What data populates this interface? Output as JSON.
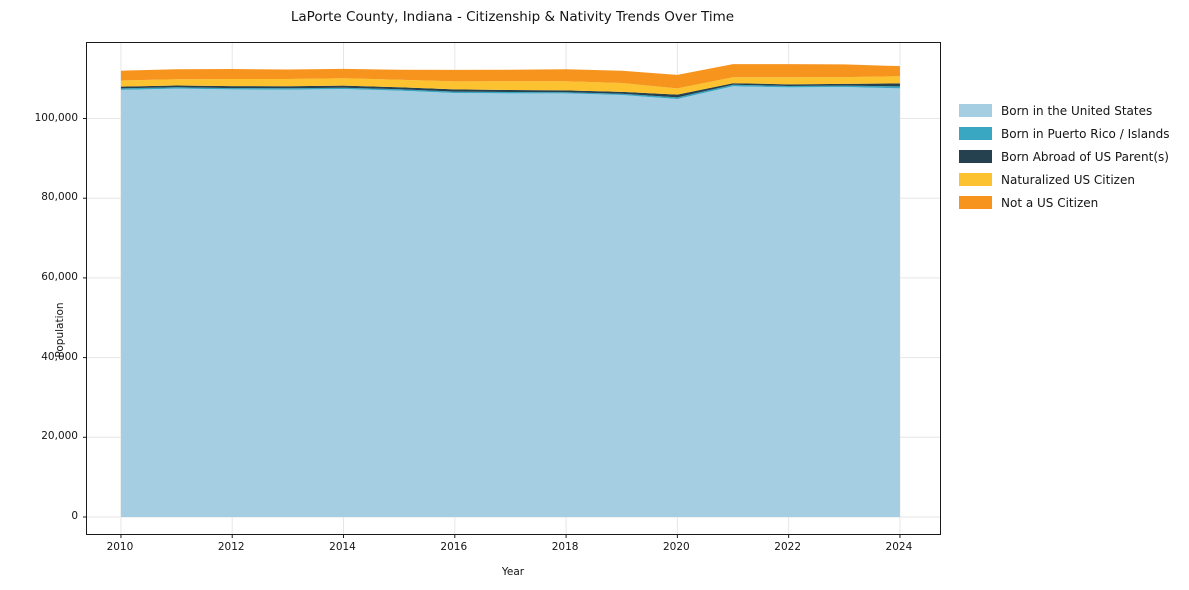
{
  "title": "LaPorte County, Indiana - Citizenship & Nativity Trends Over Time",
  "axes": {
    "x_label": "Year",
    "y_label": "Population",
    "x_ticks": [
      {
        "value": 2010,
        "label": "2010"
      },
      {
        "value": 2012,
        "label": "2012"
      },
      {
        "value": 2014,
        "label": "2014"
      },
      {
        "value": 2016,
        "label": "2016"
      },
      {
        "value": 2018,
        "label": "2018"
      },
      {
        "value": 2020,
        "label": "2020"
      },
      {
        "value": 2022,
        "label": "2022"
      },
      {
        "value": 2024,
        "label": "2024"
      }
    ],
    "y_ticks": [
      {
        "value": 0,
        "label": "0"
      },
      {
        "value": 20000,
        "label": "20,000"
      },
      {
        "value": 40000,
        "label": "40,000"
      },
      {
        "value": 60000,
        "label": "60,000"
      },
      {
        "value": 80000,
        "label": "80,000"
      },
      {
        "value": 100000,
        "label": "100,000"
      }
    ]
  },
  "legend": {
    "position": "right",
    "entries": [
      "Born in the United States",
      "Born in Puerto Rico / Islands",
      "Born Abroad of US Parent(s)",
      "Naturalized US Citizen",
      "Not a US Citizen"
    ]
  },
  "chart_data": {
    "type": "area",
    "stacked": true,
    "title": "LaPorte County, Indiana - Citizenship & Nativity Trends Over Time",
    "xlabel": "Year",
    "ylabel": "Population",
    "grid": true,
    "legend_position": "right",
    "x": [
      2010,
      2011,
      2012,
      2013,
      2014,
      2015,
      2016,
      2017,
      2018,
      2019,
      2020,
      2021,
      2022,
      2023,
      2024
    ],
    "series": [
      {
        "name": "Born in the United States",
        "color": "#a6cee3",
        "values": [
          107200,
          107500,
          107300,
          107250,
          107400,
          107000,
          106400,
          106300,
          106300,
          105900,
          104900,
          108100,
          107800,
          107900,
          107550
        ]
      },
      {
        "name": "Born in Puerto Rico / Islands",
        "color": "#3aa7c2",
        "values": [
          350,
          330,
          340,
          350,
          330,
          340,
          360,
          350,
          300,
          320,
          400,
          380,
          360,
          350,
          500
        ]
      },
      {
        "name": "Born Abroad of US Parent(s)",
        "color": "#25404f",
        "values": [
          450,
          460,
          480,
          500,
          520,
          500,
          550,
          500,
          450,
          480,
          700,
          380,
          420,
          450,
          770
        ]
      },
      {
        "name": "Naturalized US Citizen",
        "color": "#fcc22f",
        "values": [
          1550,
          1560,
          1800,
          1800,
          1850,
          1900,
          2000,
          2200,
          2300,
          2200,
          1550,
          1500,
          1760,
          1700,
          1780
        ]
      },
      {
        "name": "Not a US Citizen",
        "color": "#f7941e",
        "values": [
          2450,
          2500,
          2500,
          2400,
          2350,
          2500,
          2900,
          2900,
          3000,
          3100,
          3400,
          3300,
          3300,
          3200,
          2540
        ]
      }
    ],
    "xlim": [
      2009.39,
      2024.72
    ],
    "ylim": [
      -4270,
      118950
    ],
    "grid_color": "#e6e6e6"
  }
}
